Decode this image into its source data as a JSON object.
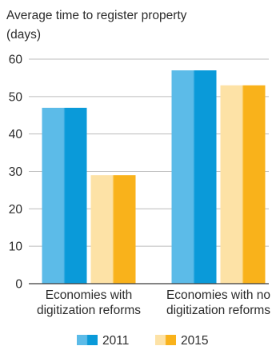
{
  "chart_data": {
    "type": "bar",
    "title": "Average time to register property",
    "subtitle": "(days)",
    "xlabel": "",
    "ylabel": "",
    "ylim": [
      0,
      60
    ],
    "yticks": [
      0,
      10,
      20,
      30,
      40,
      50,
      60
    ],
    "grid": true,
    "legend_position": "bottom",
    "categories": [
      [
        "Economies with",
        "digitization reforms"
      ],
      [
        "Economies with no",
        "digitization reforms"
      ]
    ],
    "series": [
      {
        "name": "2011",
        "values": [
          47,
          57
        ],
        "color": "#0a9ad9",
        "color_light": "#5cbbe8"
      },
      {
        "name": "2015",
        "values": [
          29,
          53
        ],
        "color": "#f9b21b",
        "color_light": "#fde2a6"
      }
    ]
  }
}
